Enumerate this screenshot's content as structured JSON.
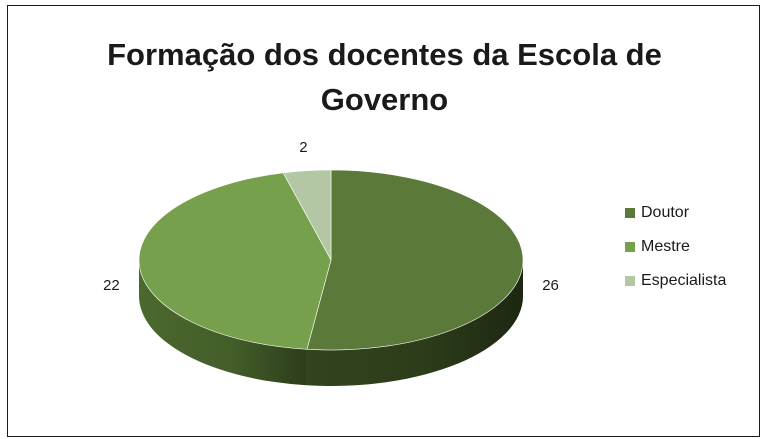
{
  "chart_data": {
    "type": "pie",
    "title": "Formação dos docentes da Escola de\nGoverno",
    "categories": [
      "Doutor",
      "Mestre",
      "Especialista"
    ],
    "values": [
      26,
      22,
      2
    ],
    "data_labels": [
      "26",
      "22",
      "2"
    ],
    "colors": [
      "#5b7a3a",
      "#77a04d",
      "#b3c7a5"
    ],
    "side_colors": [
      "#34471f",
      "#4f6e30",
      "#7e9474"
    ],
    "legend_position": "right",
    "style": "3d"
  }
}
